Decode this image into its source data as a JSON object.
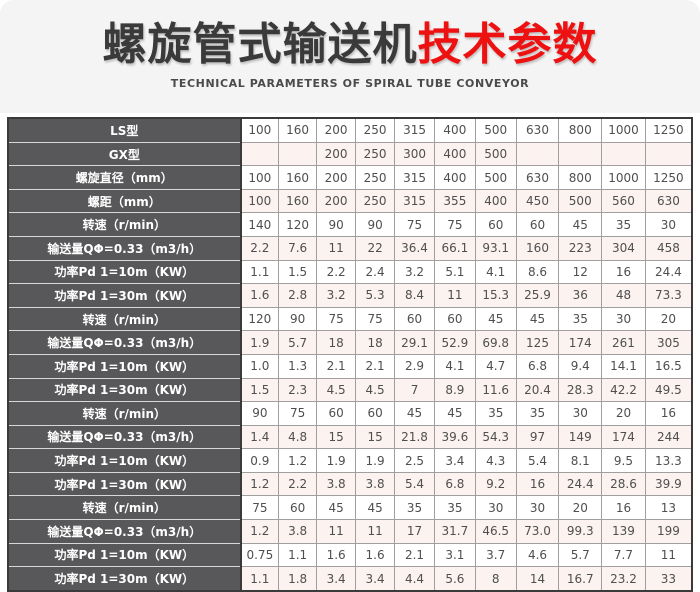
{
  "header": {
    "title_black": "螺旋管式输送机",
    "title_red": "技术参数",
    "subtitle": "TECHNICAL PARAMETERS OF SPIRAL TUBE CONVEYOR"
  },
  "colors": {
    "title_red": "#ee1111",
    "label_bg": "#58585a",
    "row_pink": "#fcf2f0",
    "border_dark": "#3a3a3a",
    "border_light": "#9f9f9f"
  },
  "table": {
    "rows": [
      {
        "label": "LS型",
        "values": [
          "100",
          "160",
          "200",
          "250",
          "315",
          "400",
          "500",
          "630",
          "800",
          "1000",
          "1250"
        ]
      },
      {
        "label": "GX型",
        "values": [
          "",
          "",
          "200",
          "250",
          "300",
          "400",
          "500",
          "",
          "",
          "",
          ""
        ]
      },
      {
        "label": "螺旋直径（mm）",
        "values": [
          "100",
          "160",
          "200",
          "250",
          "315",
          "400",
          "500",
          "630",
          "800",
          "1000",
          "1250"
        ]
      },
      {
        "label": "螺距（mm）",
        "values": [
          "100",
          "160",
          "200",
          "250",
          "315",
          "355",
          "400",
          "450",
          "500",
          "560",
          "630"
        ]
      },
      {
        "label": "转速（r/min）",
        "values": [
          "140",
          "120",
          "90",
          "90",
          "75",
          "75",
          "60",
          "60",
          "45",
          "35",
          "30"
        ]
      },
      {
        "label": "输送量QΦ=0.33（m3/h）",
        "values": [
          "2.2",
          "7.6",
          "11",
          "22",
          "36.4",
          "66.1",
          "93.1",
          "160",
          "223",
          "304",
          "458"
        ]
      },
      {
        "label": "功率Pd 1=10m（KW）",
        "values": [
          "1.1",
          "1.5",
          "2.2",
          "2.4",
          "3.2",
          "5.1",
          "4.1",
          "8.6",
          "12",
          "16",
          "24.4"
        ]
      },
      {
        "label": "功率Pd 1=30m（KW）",
        "values": [
          "1.6",
          "2.8",
          "3.2",
          "5.3",
          "8.4",
          "11",
          "15.3",
          "25.9",
          "36",
          "48",
          "73.3"
        ]
      },
      {
        "label": "转速（r/min）",
        "values": [
          "120",
          "90",
          "75",
          "75",
          "60",
          "60",
          "45",
          "45",
          "35",
          "30",
          "20"
        ]
      },
      {
        "label": "输送量QΦ=0.33（m3/h）",
        "values": [
          "1.9",
          "5.7",
          "18",
          "18",
          "29.1",
          "52.9",
          "69.8",
          "125",
          "174",
          "261",
          "305"
        ]
      },
      {
        "label": "功率Pd 1=10m（KW）",
        "values": [
          "1.0",
          "1.3",
          "2.1",
          "2.1",
          "2.9",
          "4.1",
          "4.7",
          "6.8",
          "9.4",
          "14.1",
          "16.5"
        ]
      },
      {
        "label": "功率Pd 1=30m（KW）",
        "values": [
          "1.5",
          "2.3",
          "4.5",
          "4.5",
          "7",
          "8.9",
          "11.6",
          "20.4",
          "28.3",
          "42.2",
          "49.5"
        ]
      },
      {
        "label": "转速（r/min）",
        "values": [
          "90",
          "75",
          "60",
          "60",
          "45",
          "45",
          "35",
          "35",
          "30",
          "20",
          "16"
        ]
      },
      {
        "label": "输送量QΦ=0.33（m3/h）",
        "values": [
          "1.4",
          "4.8",
          "15",
          "15",
          "21.8",
          "39.6",
          "54.3",
          "97",
          "149",
          "174",
          "244"
        ]
      },
      {
        "label": "功率Pd 1=10m（KW）",
        "values": [
          "0.9",
          "1.2",
          "1.9",
          "1.9",
          "2.5",
          "3.4",
          "4.3",
          "5.4",
          "8.1",
          "9.5",
          "13.3"
        ]
      },
      {
        "label": "功率Pd 1=30m（KW）",
        "values": [
          "1.2",
          "2.2",
          "3.8",
          "3.8",
          "5.4",
          "6.8",
          "9.2",
          "16",
          "24.4",
          "28.6",
          "39.9"
        ]
      },
      {
        "label": "转速（r/min）",
        "values": [
          "75",
          "60",
          "45",
          "45",
          "35",
          "35",
          "30",
          "30",
          "20",
          "16",
          "13"
        ]
      },
      {
        "label": "输送量QΦ=0.33（m3/h）",
        "values": [
          "1.2",
          "3.8",
          "11",
          "11",
          "17",
          "31.7",
          "46.5",
          "73.0",
          "99.3",
          "139",
          "199"
        ]
      },
      {
        "label": "功率Pd 1=10m（KW）",
        "values": [
          "0.75",
          "1.1",
          "1.6",
          "1.6",
          "2.1",
          "3.1",
          "3.7",
          "4.6",
          "5.7",
          "7.7",
          "11"
        ]
      },
      {
        "label": "功率Pd 1=30m（KW）",
        "values": [
          "1.1",
          "1.8",
          "3.4",
          "3.4",
          "4.4",
          "5.6",
          "8",
          "14",
          "16.7",
          "23.2",
          "33"
        ]
      }
    ]
  }
}
